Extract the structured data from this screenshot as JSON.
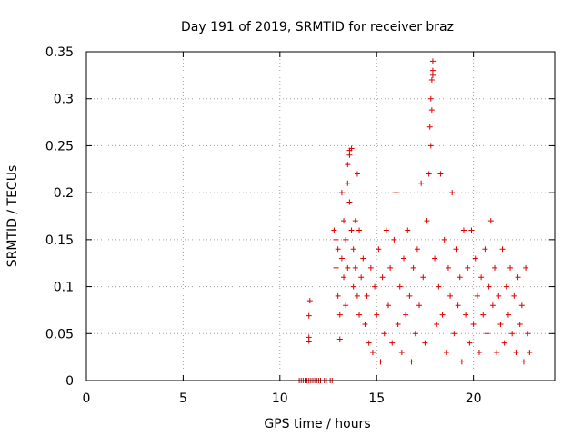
{
  "chart_data": {
    "type": "scatter",
    "title": "Day 191 of 2019, SRMTID for receiver braz",
    "xlabel": "GPS time / hours",
    "ylabel": "SRMTID / TECUs",
    "xlim": [
      0,
      24.2
    ],
    "ylim": [
      0,
      0.35
    ],
    "x_ticks": [
      0,
      5,
      10,
      15,
      20
    ],
    "x_tick_labels": [
      "0",
      "5",
      "10",
      "15",
      "20"
    ],
    "y_ticks": [
      0,
      0.05,
      0.1,
      0.15,
      0.2,
      0.25,
      0.3,
      0.35
    ],
    "y_tick_labels": [
      "0",
      "0.05",
      "0.1",
      "0.15",
      "0.2",
      "0.25",
      "0.3",
      "0.35"
    ],
    "grid": true,
    "marker": "+",
    "color": "#dd0000",
    "series": [
      {
        "name": "SRMTID",
        "points": [
          [
            11.55,
            0.085
          ],
          [
            11.5,
            0.069
          ],
          [
            11.5,
            0.046
          ],
          [
            11.5,
            0.042
          ],
          [
            11.0,
            0.0
          ],
          [
            11.1,
            0.0
          ],
          [
            11.2,
            0.0
          ],
          [
            11.3,
            0.0
          ],
          [
            11.4,
            0.0
          ],
          [
            11.5,
            0.0
          ],
          [
            11.6,
            0.0
          ],
          [
            11.7,
            0.0
          ],
          [
            11.8,
            0.0
          ],
          [
            11.9,
            0.0
          ],
          [
            12.0,
            0.0
          ],
          [
            12.1,
            0.0
          ],
          [
            12.3,
            0.0
          ],
          [
            12.4,
            0.0
          ],
          [
            12.6,
            0.0
          ],
          [
            12.7,
            0.0
          ],
          [
            12.8,
            0.16
          ],
          [
            12.9,
            0.15
          ],
          [
            12.9,
            0.12
          ],
          [
            13.0,
            0.14
          ],
          [
            13.0,
            0.09
          ],
          [
            13.1,
            0.07
          ],
          [
            13.1,
            0.044
          ],
          [
            13.2,
            0.2
          ],
          [
            13.2,
            0.13
          ],
          [
            13.3,
            0.17
          ],
          [
            13.3,
            0.11
          ],
          [
            13.4,
            0.15
          ],
          [
            13.4,
            0.08
          ],
          [
            13.5,
            0.21
          ],
          [
            13.5,
            0.12
          ],
          [
            13.5,
            0.23
          ],
          [
            13.6,
            0.24
          ],
          [
            13.6,
            0.245
          ],
          [
            13.7,
            0.247
          ],
          [
            13.6,
            0.19
          ],
          [
            13.7,
            0.16
          ],
          [
            13.8,
            0.1
          ],
          [
            13.8,
            0.14
          ],
          [
            13.9,
            0.12
          ],
          [
            13.9,
            0.17
          ],
          [
            14.0,
            0.22
          ],
          [
            14.0,
            0.09
          ],
          [
            14.1,
            0.16
          ],
          [
            14.1,
            0.07
          ],
          [
            14.2,
            0.11
          ],
          [
            14.3,
            0.13
          ],
          [
            14.4,
            0.06
          ],
          [
            14.5,
            0.09
          ],
          [
            14.6,
            0.04
          ],
          [
            14.7,
            0.12
          ],
          [
            14.8,
            0.03
          ],
          [
            14.9,
            0.1
          ],
          [
            15.0,
            0.07
          ],
          [
            15.1,
            0.14
          ],
          [
            15.2,
            0.02
          ],
          [
            15.3,
            0.11
          ],
          [
            15.4,
            0.05
          ],
          [
            15.5,
            0.16
          ],
          [
            15.6,
            0.08
          ],
          [
            15.7,
            0.12
          ],
          [
            15.8,
            0.04
          ],
          [
            15.9,
            0.15
          ],
          [
            16.0,
            0.2
          ],
          [
            16.1,
            0.06
          ],
          [
            16.2,
            0.1
          ],
          [
            16.3,
            0.03
          ],
          [
            16.4,
            0.13
          ],
          [
            16.5,
            0.07
          ],
          [
            16.6,
            0.16
          ],
          [
            16.7,
            0.09
          ],
          [
            16.8,
            0.02
          ],
          [
            16.9,
            0.12
          ],
          [
            17.0,
            0.05
          ],
          [
            17.1,
            0.14
          ],
          [
            17.2,
            0.08
          ],
          [
            17.3,
            0.21
          ],
          [
            17.4,
            0.11
          ],
          [
            17.5,
            0.04
          ],
          [
            17.6,
            0.17
          ],
          [
            17.7,
            0.22
          ],
          [
            17.75,
            0.27
          ],
          [
            17.8,
            0.3
          ],
          [
            17.85,
            0.32
          ],
          [
            17.9,
            0.325
          ],
          [
            17.9,
            0.33
          ],
          [
            17.9,
            0.34
          ],
          [
            17.85,
            0.288
          ],
          [
            17.8,
            0.25
          ],
          [
            18.0,
            0.13
          ],
          [
            18.1,
            0.06
          ],
          [
            18.2,
            0.1
          ],
          [
            18.3,
            0.22
          ],
          [
            18.4,
            0.07
          ],
          [
            18.5,
            0.15
          ],
          [
            18.6,
            0.03
          ],
          [
            18.7,
            0.12
          ],
          [
            18.8,
            0.09
          ],
          [
            18.9,
            0.2
          ],
          [
            19.0,
            0.05
          ],
          [
            19.1,
            0.14
          ],
          [
            19.2,
            0.08
          ],
          [
            19.3,
            0.11
          ],
          [
            19.4,
            0.02
          ],
          [
            19.5,
            0.16
          ],
          [
            19.6,
            0.07
          ],
          [
            19.7,
            0.12
          ],
          [
            19.8,
            0.04
          ],
          [
            19.9,
            0.16
          ],
          [
            20.0,
            0.06
          ],
          [
            20.1,
            0.13
          ],
          [
            20.2,
            0.09
          ],
          [
            20.3,
            0.03
          ],
          [
            20.4,
            0.11
          ],
          [
            20.5,
            0.07
          ],
          [
            20.6,
            0.14
          ],
          [
            20.7,
            0.05
          ],
          [
            20.8,
            0.1
          ],
          [
            20.9,
            0.17
          ],
          [
            21.0,
            0.08
          ],
          [
            21.1,
            0.12
          ],
          [
            21.2,
            0.03
          ],
          [
            21.3,
            0.09
          ],
          [
            21.4,
            0.06
          ],
          [
            21.5,
            0.14
          ],
          [
            21.6,
            0.04
          ],
          [
            21.7,
            0.1
          ],
          [
            21.8,
            0.07
          ],
          [
            21.9,
            0.12
          ],
          [
            22.0,
            0.05
          ],
          [
            22.1,
            0.09
          ],
          [
            22.2,
            0.03
          ],
          [
            22.3,
            0.11
          ],
          [
            22.4,
            0.06
          ],
          [
            22.5,
            0.08
          ],
          [
            22.6,
            0.02
          ],
          [
            22.7,
            0.12
          ],
          [
            22.8,
            0.05
          ],
          [
            22.9,
            0.03
          ]
        ]
      }
    ]
  }
}
